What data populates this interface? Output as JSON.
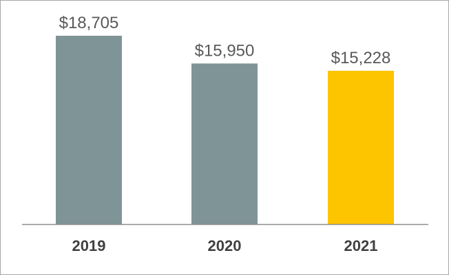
{
  "chart_data": {
    "type": "bar",
    "categories": [
      "2019",
      "2020",
      "2021"
    ],
    "values": [
      18705,
      15950,
      15228
    ],
    "data_labels": [
      "$18,705",
      "$15,950",
      "$15,228"
    ],
    "ylim": [
      0,
      18705
    ],
    "grid": false,
    "legend": "none",
    "colors": {
      "default_bar": "#7f9497",
      "highlight_bar": "#fdc400",
      "axis_line": "#8c8c8c"
    },
    "highlight_index": 2
  }
}
